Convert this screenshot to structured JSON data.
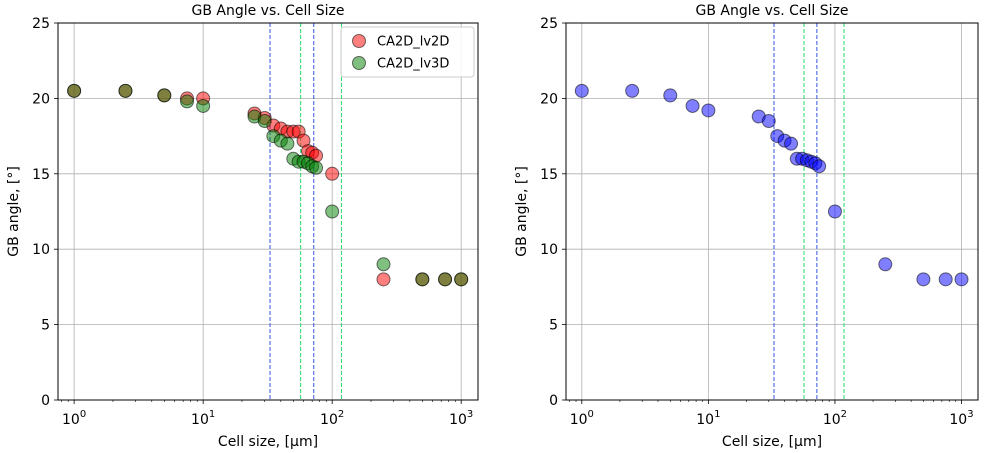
{
  "chart_data": [
    {
      "type": "scatter",
      "title": "GB Angle vs. Cell Size",
      "xlabel": "Cell size, [μm]",
      "ylabel": "GB angle, [°]",
      "xscale": "log",
      "xlim": [
        0.75,
        1350
      ],
      "ylim": [
        0,
        25
      ],
      "xticks": [
        1,
        10,
        100,
        1000
      ],
      "xtick_labels": [
        {
          "base": "10",
          "exp": "0"
        },
        {
          "base": "10",
          "exp": "1"
        },
        {
          "base": "10",
          "exp": "2"
        },
        {
          "base": "10",
          "exp": "3"
        }
      ],
      "yticks": [
        0,
        5,
        10,
        15,
        20,
        25
      ],
      "grid": true,
      "legend": "top-right",
      "vlines": [
        {
          "x": 33,
          "color": "#3355dd",
          "style": "dashed"
        },
        {
          "x": 72,
          "color": "#3355dd",
          "style": "dashed"
        },
        {
          "x": 57,
          "color": "#22dd66",
          "style": "dashed"
        },
        {
          "x": 118,
          "color": "#22dd66",
          "style": "dashed"
        }
      ],
      "series": [
        {
          "name": "CA2D_lv2D",
          "color": "#ff0000",
          "x": [
            1,
            2.5,
            5,
            7.5,
            10,
            25,
            30,
            35,
            40,
            45,
            50,
            55,
            60,
            65,
            70,
            75,
            100,
            250,
            500,
            750,
            1000
          ],
          "y": [
            20.5,
            20.5,
            20.2,
            20.0,
            20.0,
            19.0,
            18.7,
            18.2,
            18.0,
            17.8,
            17.8,
            17.8,
            17.2,
            16.5,
            16.4,
            16.2,
            15.0,
            8.0,
            8.0,
            8.0,
            8.0
          ]
        },
        {
          "name": "CA2D_lv3D",
          "color": "#008000",
          "x": [
            1,
            2.5,
            5,
            7.5,
            10,
            25,
            30,
            35,
            40,
            45,
            50,
            55,
            60,
            65,
            70,
            75,
            100,
            250,
            500,
            750,
            1000
          ],
          "y": [
            20.5,
            20.5,
            20.2,
            19.8,
            19.5,
            18.8,
            18.5,
            17.5,
            17.2,
            17.0,
            16.0,
            15.8,
            15.8,
            15.7,
            15.5,
            15.4,
            12.5,
            9.0,
            8.0,
            8.0,
            8.0
          ]
        }
      ]
    },
    {
      "type": "scatter",
      "title": "GB Angle vs. Cell Size",
      "xlabel": "Cell size, [μm]",
      "ylabel": "GB angle, [°]",
      "xscale": "log",
      "xlim": [
        0.75,
        1350
      ],
      "ylim": [
        0,
        25
      ],
      "xticks": [
        1,
        10,
        100,
        1000
      ],
      "xtick_labels": [
        {
          "base": "10",
          "exp": "0"
        },
        {
          "base": "10",
          "exp": "1"
        },
        {
          "base": "10",
          "exp": "2"
        },
        {
          "base": "10",
          "exp": "3"
        }
      ],
      "yticks": [
        0,
        5,
        10,
        15,
        20,
        25
      ],
      "grid": true,
      "legend": "none",
      "vlines": [
        {
          "x": 33,
          "color": "#3355dd",
          "style": "dashed"
        },
        {
          "x": 72,
          "color": "#3355dd",
          "style": "dashed"
        },
        {
          "x": 57,
          "color": "#22dd66",
          "style": "dashed"
        },
        {
          "x": 118,
          "color": "#22dd66",
          "style": "dashed"
        }
      ],
      "series": [
        {
          "name": "",
          "color": "#0000ff",
          "x": [
            1,
            2.5,
            5,
            7.5,
            10,
            25,
            30,
            35,
            40,
            45,
            50,
            55,
            60,
            65,
            70,
            75,
            100,
            250,
            500,
            750,
            1000
          ],
          "y": [
            20.5,
            20.5,
            20.2,
            19.5,
            19.2,
            18.8,
            18.5,
            17.5,
            17.2,
            17.0,
            16.0,
            16.0,
            15.9,
            15.8,
            15.7,
            15.5,
            12.5,
            9.0,
            8.0,
            8.0,
            8.0
          ]
        }
      ]
    }
  ]
}
